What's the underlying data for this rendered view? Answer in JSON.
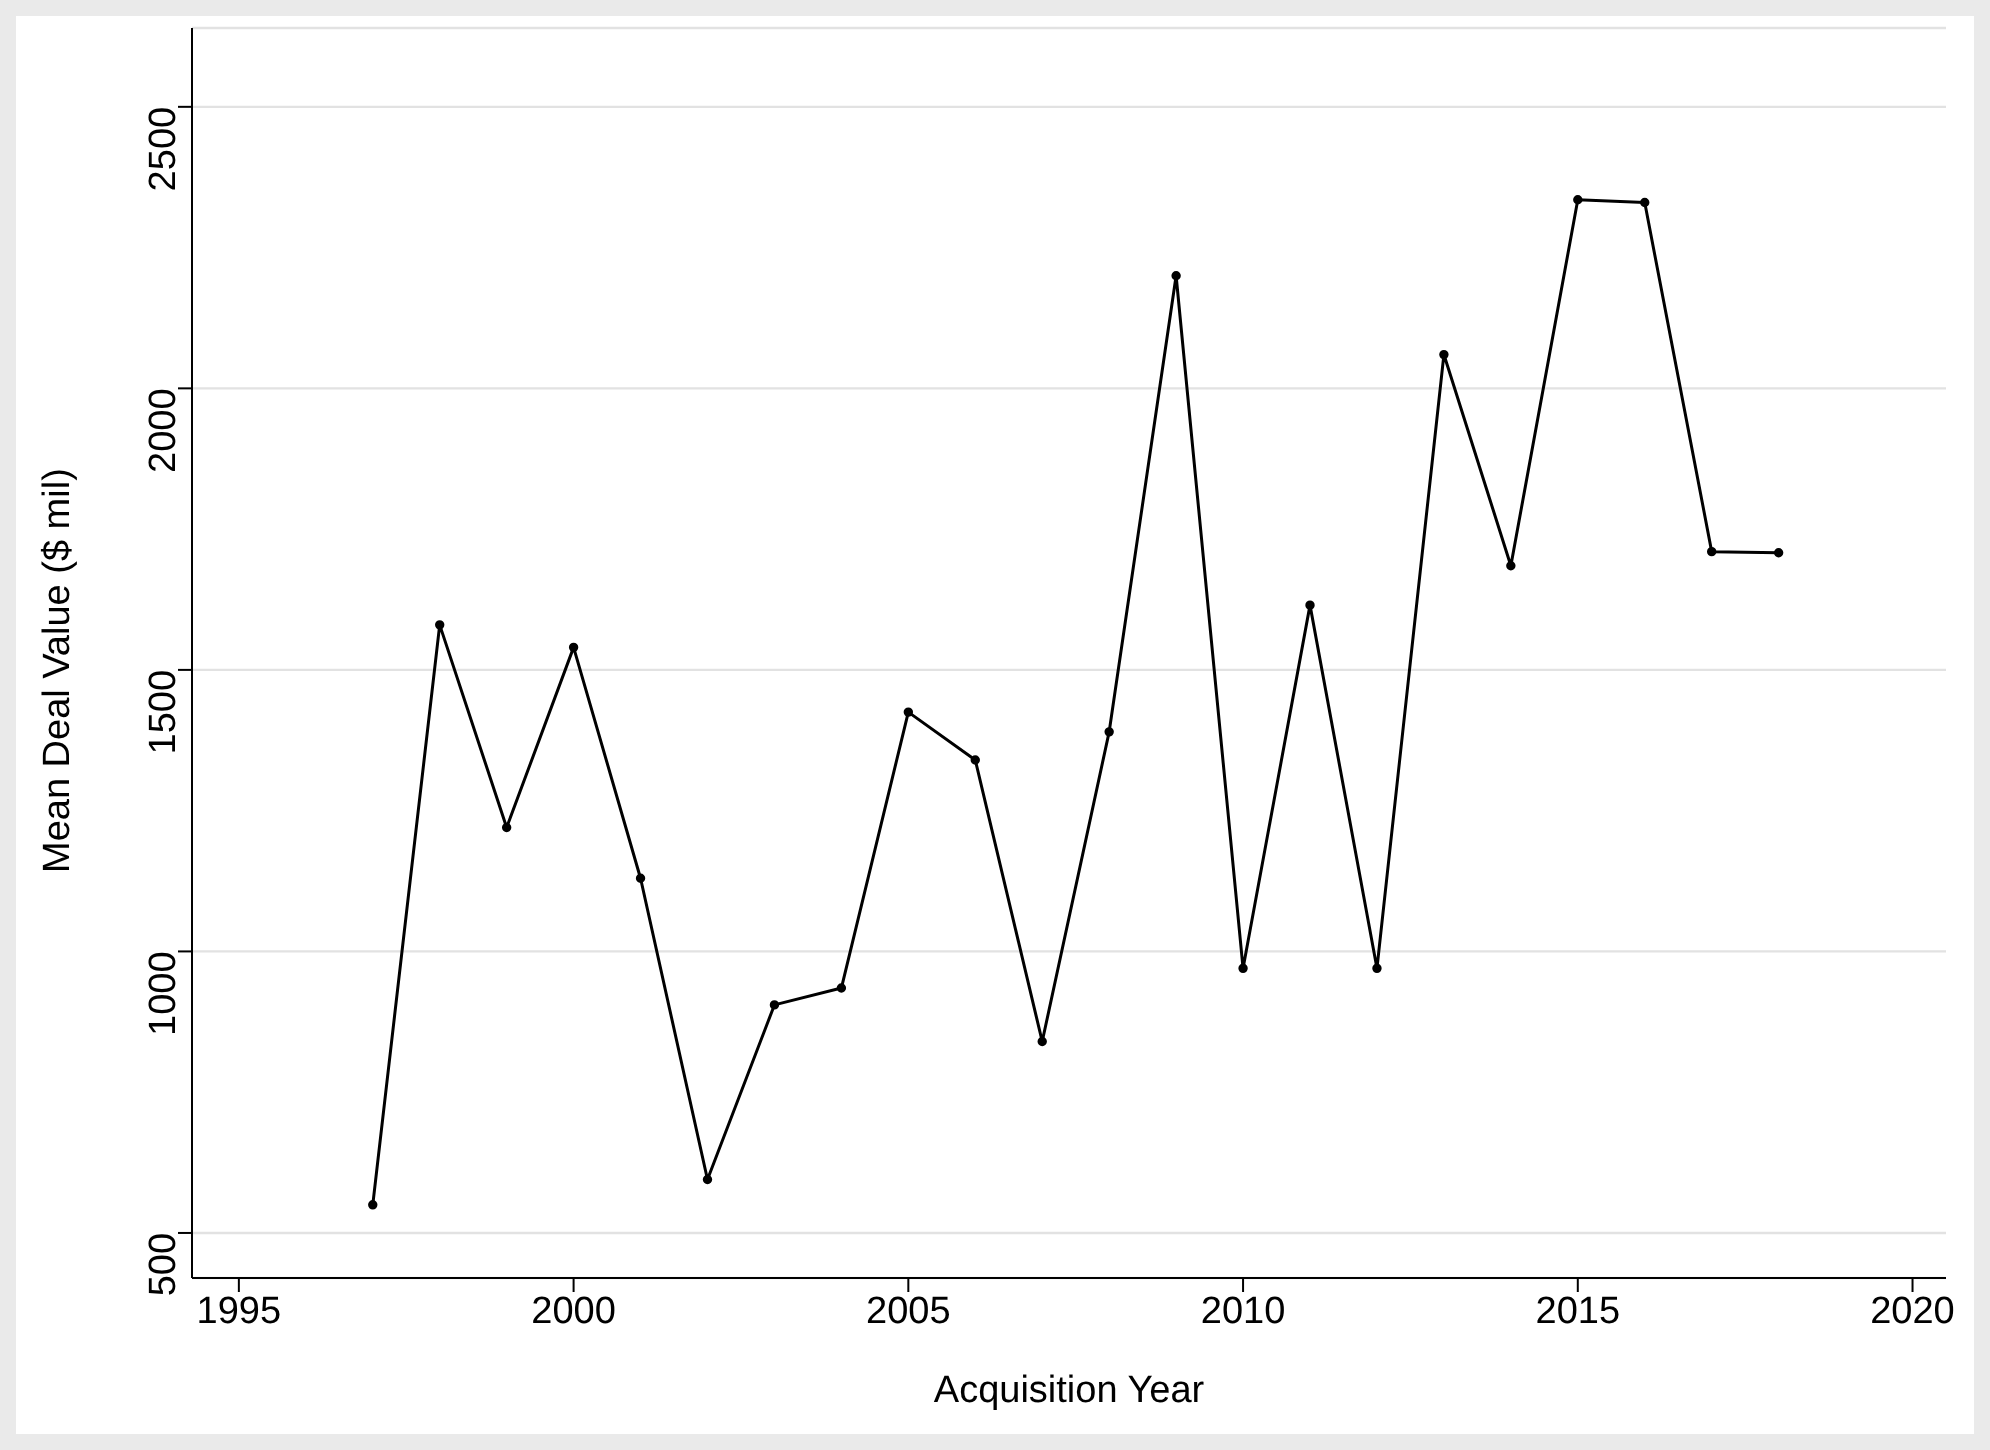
{
  "chart_data": {
    "type": "line",
    "xlabel": "Acquisition Year",
    "ylabel": "Mean Deal Value ($ mil)",
    "x": [
      1997,
      1998,
      1999,
      2000,
      2001,
      2002,
      2003,
      2004,
      2005,
      2006,
      2007,
      2008,
      2009,
      2010,
      2011,
      2012,
      2013,
      2014,
      2015,
      2016,
      2017,
      2018
    ],
    "series": [
      {
        "color": "#000000",
        "values": [
          550,
          1580,
          1220,
          1540,
          1130,
          595,
          905,
          935,
          1425,
          1340,
          840,
          1390,
          2200,
          970,
          1615,
          970,
          2060,
          1685,
          2335,
          2330,
          1710,
          1708
        ]
      }
    ],
    "xlim": [
      1994.3,
      2020.5
    ],
    "xticks": [
      1995,
      2000,
      2005,
      2010,
      2015,
      2020
    ],
    "ylim": [
      420,
      2640
    ],
    "yticks": [
      500,
      1000,
      1500,
      2000,
      2500
    ],
    "grid": "y",
    "marker": "circle",
    "line_style": "solid"
  }
}
